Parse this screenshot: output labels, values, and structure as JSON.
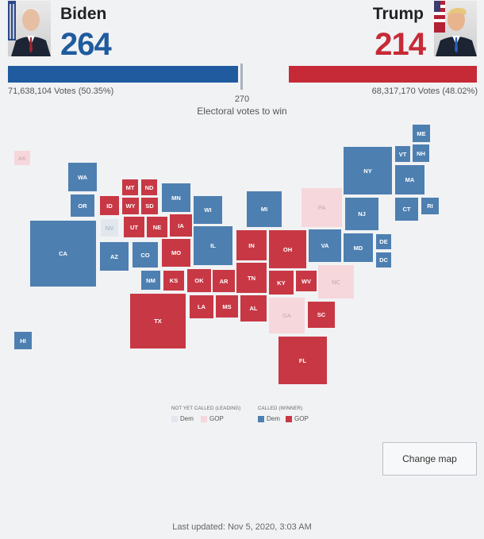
{
  "biden": {
    "name": "Biden",
    "electoral_votes": "264",
    "popular_votes": "71,638,104 Votes (50.35%)",
    "color": "#1f5b9e",
    "bar_fraction": 0.49
  },
  "trump": {
    "name": "Trump",
    "electoral_votes": "214",
    "popular_votes": "68,317,170 Votes (48.02%)",
    "color": "#c62a36",
    "bar_fraction": 0.4
  },
  "threshold": {
    "value": "270",
    "label": "Electoral votes to win"
  },
  "colors": {
    "dem_called": "#4e7fb1",
    "gop_called": "#c83844",
    "dem_leading": "#e2e7ee",
    "gop_leading": "#f6d7db"
  },
  "states": {
    "AK": "AK",
    "WA": "WA",
    "OR": "OR",
    "CA": "CA",
    "NV": "NV",
    "ID": "ID",
    "MT": "MT",
    "ND": "ND",
    "WY": "WY",
    "SD": "SD",
    "UT": "UT",
    "NE": "NE",
    "AZ": "AZ",
    "CO": "CO",
    "NM": "NM",
    "KS": "KS",
    "OK": "OK",
    "TX": "TX",
    "MN": "MN",
    "IA": "IA",
    "MO": "MO",
    "AR": "AR",
    "LA": "LA",
    "MS": "MS",
    "WI": "WI",
    "IL": "IL",
    "MI": "MI",
    "IN": "IN",
    "OH": "OH",
    "KY": "KY",
    "TN": "TN",
    "AL": "AL",
    "GA": "GA",
    "FL": "FL",
    "SC": "SC",
    "NC": "NC",
    "WV": "WV",
    "VA": "VA",
    "PA": "PA",
    "NY": "NY",
    "NJ": "NJ",
    "MD": "MD",
    "DE": "DE",
    "DC": "DC",
    "VT": "VT",
    "NH": "NH",
    "ME": "ME",
    "MA": "MA",
    "CT": "CT",
    "RI": "RI",
    "HI": "HI"
  },
  "legend": {
    "not_called_title": "NOT YET CALLED (LEADING)",
    "called_title": "CALLED (WINNER)",
    "dem": "Dem",
    "gop": "GOP"
  },
  "change_map_label": "Change map",
  "last_updated": "Last updated: Nov 5, 2020, 3:03 AM"
}
